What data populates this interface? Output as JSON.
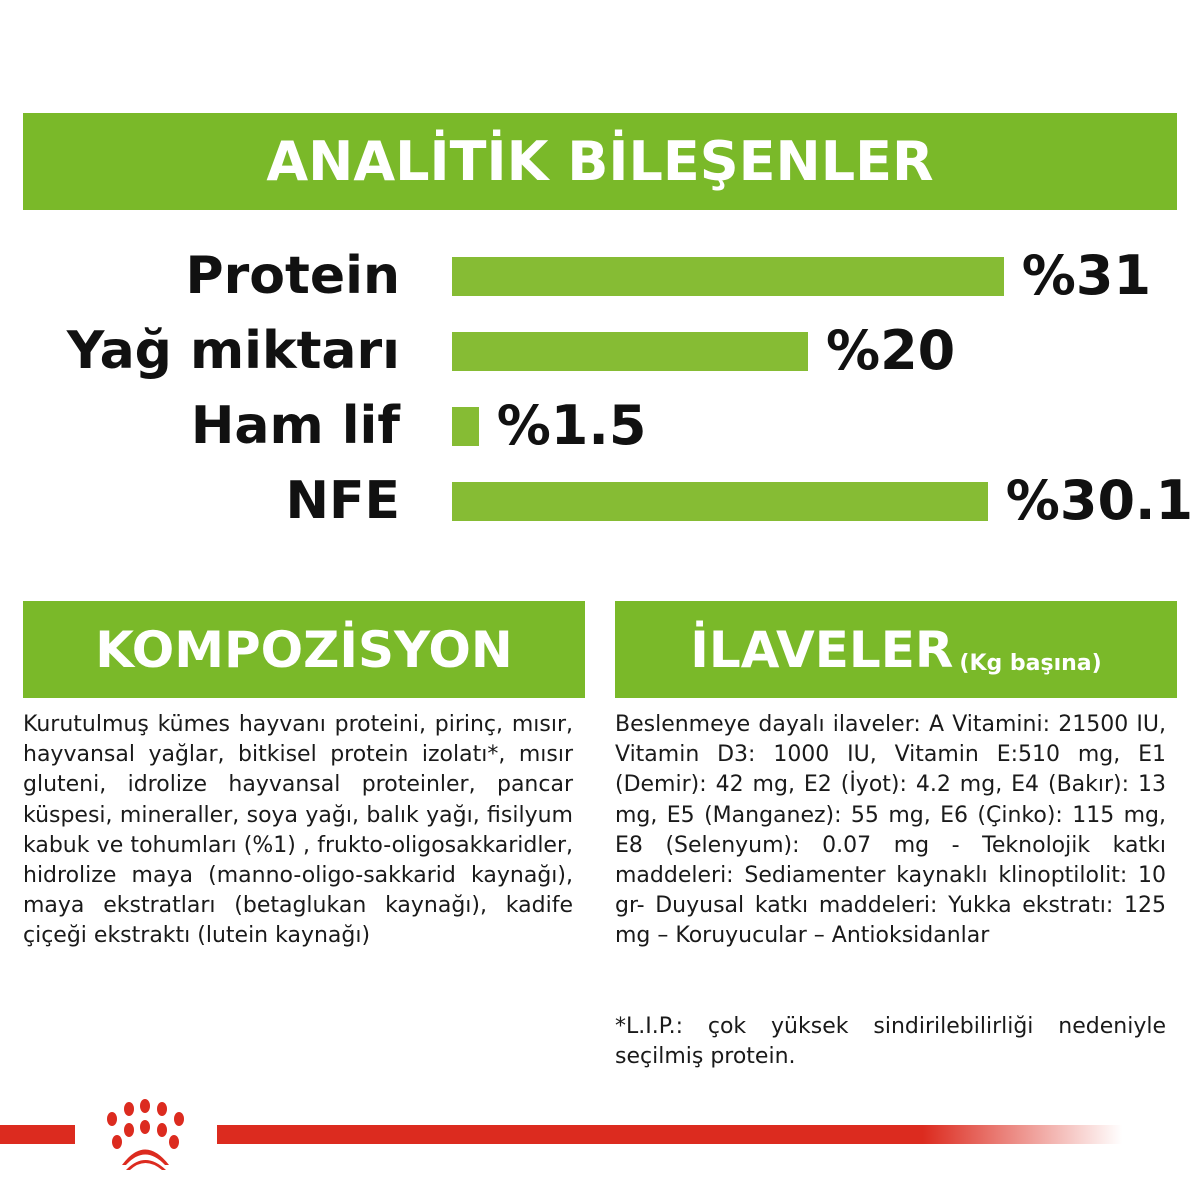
{
  "header": {
    "title": "ANALİTİK BİLEŞENLER"
  },
  "analysis": {
    "max_percent": 31,
    "items": [
      {
        "label": "Protein",
        "value": 31,
        "display": "%31"
      },
      {
        "label": "Yağ miktarı",
        "value": 20,
        "display": "%20"
      },
      {
        "label": "Ham lif",
        "value": 1.5,
        "display": "%1.5"
      },
      {
        "label": "NFE",
        "value": 30.1,
        "display": "%30.1"
      }
    ]
  },
  "composition": {
    "title": "KOMPOZİSYON",
    "text": "Kurutulmuş kümes hayvanı proteini, pirinç, mısır, hayvansal yağlar, bitkisel protein izolatı*, mısır gluteni, idrolize hayvansal proteinler, pancar küspesi, mineraller, soya yağı, balık yağı, fisilyum kabuk ve tohumları (%1) , frukto-oligosakkaridler, hidrolize maya (manno-oligo-sakkarid kaynağı), maya ekstratları (betaglukan kaynağı), kadife çiçeği ekstraktı (lutein kaynağı)"
  },
  "additives": {
    "title": "İLAVELER",
    "subtitle": "(Kg başına)",
    "text": "Beslenmeye dayalı ilaveler: A Vitamini: 21500 IU, Vitamin D3: 1000 IU, Vitamin E:510 mg, E1 (Demir): 42 mg, E2 (İyot): 4.2 mg, E4 (Bakır): 13 mg, E5 (Manganez): 55 mg, E6 (Çinko): 115 mg, E8 (Selenyum): 0.07 mg - Teknolojik katkı maddeleri: Sediamenter kaynaklı klinoptilolit: 10 gr- Duyusal katkı maddeleri: Yukka ekstratı: 125 mg – Koruyucular – Antioksidanlar",
    "note": "*L.I.P.: çok yüksek sindirilebilirliği nedeniyle seçilmiş protein."
  },
  "colors": {
    "green": "#7ab929",
    "bar": "#86bc34",
    "brand_red": "#dc2b1f"
  },
  "logo": {
    "icon": "royal-canin-crown-paw-logo"
  }
}
